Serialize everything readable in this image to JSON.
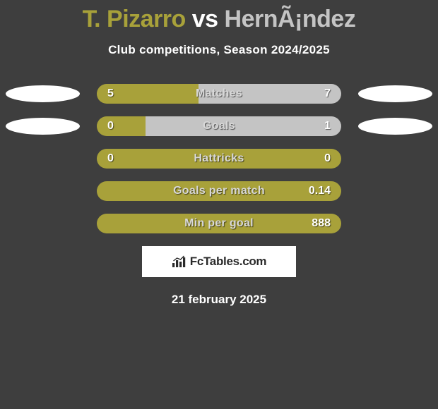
{
  "title": {
    "player1": "T. Pizarro",
    "vs": "vs",
    "player2": "HernÃ¡ndez"
  },
  "subtitle": "Club competitions, Season 2024/2025",
  "colors": {
    "player1": "#a8a13a",
    "player2": "#c4c4c4",
    "bar_bg_left": "#a8a13a",
    "bar_bg_right_inactive": "#6a6a6a",
    "bar_bg_right_active": "#c4c4c4",
    "track_full_p1": "#a8a13a",
    "ellipse_p1": "#ffffff",
    "ellipse_p2": "#ffffff",
    "text": "#ffffff",
    "label": "#d8d8d8",
    "background": "#3e3e3e",
    "badge_bg": "#ffffff",
    "badge_text": "#2a2a2a"
  },
  "bar": {
    "track_width": 346,
    "height": 28,
    "radius": 14
  },
  "stats": [
    {
      "label": "Matches",
      "val_left": "5",
      "val_right": "7",
      "left_pct": 41.7,
      "right_pct": 58.3,
      "right_color": "#c4c4c4",
      "show_ellipses": true
    },
    {
      "label": "Goals",
      "val_left": "0",
      "val_right": "1",
      "left_pct": 20.0,
      "right_pct": 80.0,
      "right_color": "#c4c4c4",
      "show_ellipses": true
    },
    {
      "label": "Hattricks",
      "val_left": "0",
      "val_right": "0",
      "left_pct": 100.0,
      "right_pct": 0.0,
      "right_color": "#6a6a6a",
      "show_ellipses": false
    },
    {
      "label": "Goals per match",
      "val_left": "",
      "val_right": "0.14",
      "left_pct": 100.0,
      "right_pct": 0.0,
      "right_color": "#6a6a6a",
      "show_ellipses": false
    },
    {
      "label": "Min per goal",
      "val_left": "",
      "val_right": "888",
      "left_pct": 100.0,
      "right_pct": 0.0,
      "right_color": "#6a6a6a",
      "show_ellipses": false
    }
  ],
  "site_badge": "FcTables.com",
  "date": "21 february 2025"
}
